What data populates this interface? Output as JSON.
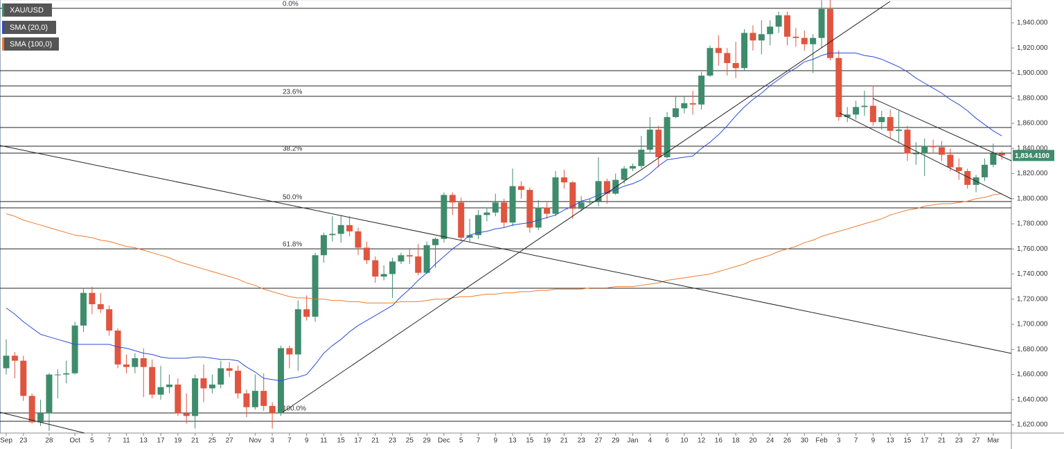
{
  "chart_data": {
    "type": "candlestick",
    "categories": [
      "Sep",
      null,
      "23",
      null,
      null,
      "28",
      null,
      null,
      "Oct",
      null,
      "5",
      null,
      "7",
      null,
      "11",
      null,
      "13",
      null,
      "17",
      null,
      "19",
      null,
      "21",
      null,
      "25",
      null,
      "27",
      null,
      null,
      "Nov",
      null,
      "3",
      null,
      "7",
      null,
      "9",
      null,
      "11",
      null,
      "15",
      null,
      "17",
      null,
      "21",
      null,
      "23",
      null,
      "25",
      null,
      "29",
      null,
      "Dec",
      null,
      "5",
      null,
      "7",
      null,
      "9",
      null,
      "13",
      null,
      "15",
      null,
      "19",
      null,
      "21",
      null,
      "23",
      null,
      "27",
      null,
      "29",
      null,
      "Jan",
      null,
      "4",
      null,
      "6",
      null,
      "10",
      null,
      "12",
      null,
      "16",
      null,
      "18",
      null,
      "20",
      null,
      "24",
      null,
      "26",
      null,
      "30",
      null,
      "Feb",
      null,
      "3",
      null,
      "7",
      null,
      "9",
      null,
      "13",
      null,
      "15",
      null,
      "17",
      null,
      "21",
      null,
      "23",
      null,
      "27",
      null,
      "Mar",
      null
    ],
    "series": [
      {
        "name": "XAU/USD",
        "color_up": "#3f8c6c",
        "color_down": "#e0553f",
        "ohlc": [
          [
            1665,
            1688,
            1660,
            1675
          ],
          [
            1675,
            1678,
            1657,
            1671
          ],
          [
            1671,
            1675,
            1639,
            1643
          ],
          [
            1643,
            1645,
            1621,
            1622
          ],
          [
            1622,
            1640,
            1619,
            1629
          ],
          [
            1629,
            1661,
            1615,
            1660
          ],
          [
            1660,
            1664,
            1641,
            1660
          ],
          [
            1660,
            1671,
            1653,
            1661
          ],
          [
            1661,
            1702,
            1660,
            1699
          ],
          [
            1699,
            1729,
            1694,
            1725
          ],
          [
            1725,
            1730,
            1708,
            1716
          ],
          [
            1716,
            1725,
            1709,
            1712
          ],
          [
            1712,
            1715,
            1691,
            1695
          ],
          [
            1695,
            1697,
            1665,
            1668
          ],
          [
            1668,
            1676,
            1661,
            1666
          ],
          [
            1666,
            1677,
            1661,
            1673
          ],
          [
            1673,
            1681,
            1642,
            1666
          ],
          [
            1666,
            1672,
            1641,
            1644
          ],
          [
            1644,
            1667,
            1640,
            1650
          ],
          [
            1650,
            1660,
            1645,
            1652
          ],
          [
            1652,
            1657,
            1627,
            1629
          ],
          [
            1629,
            1645,
            1621,
            1627
          ],
          [
            1627,
            1660,
            1617,
            1657
          ],
          [
            1657,
            1668,
            1638,
            1649
          ],
          [
            1649,
            1660,
            1645,
            1652
          ],
          [
            1652,
            1671,
            1649,
            1665
          ],
          [
            1665,
            1670,
            1658,
            1663
          ],
          [
            1663,
            1667,
            1641,
            1645
          ],
          [
            1645,
            1648,
            1626,
            1634
          ],
          [
            1634,
            1660,
            1632,
            1647
          ],
          [
            1647,
            1661,
            1631,
            1635
          ],
          [
            1635,
            1638,
            1617,
            1629
          ],
          [
            1629,
            1683,
            1627,
            1681
          ],
          [
            1681,
            1683,
            1665,
            1676
          ],
          [
            1676,
            1719,
            1663,
            1712
          ],
          [
            1712,
            1723,
            1703,
            1706
          ],
          [
            1706,
            1757,
            1702,
            1755
          ],
          [
            1755,
            1773,
            1749,
            1771
          ],
          [
            1771,
            1786,
            1766,
            1772
          ],
          [
            1772,
            1787,
            1765,
            1779
          ],
          [
            1779,
            1786,
            1770,
            1774
          ],
          [
            1774,
            1777,
            1755,
            1761
          ],
          [
            1761,
            1766,
            1748,
            1751
          ],
          [
            1751,
            1754,
            1733,
            1738
          ],
          [
            1738,
            1747,
            1735,
            1740
          ],
          [
            1740,
            1753,
            1721,
            1750
          ],
          [
            1750,
            1757,
            1748,
            1755
          ],
          [
            1755,
            1760,
            1748,
            1754
          ],
          [
            1754,
            1764,
            1739,
            1741
          ],
          [
            1741,
            1766,
            1740,
            1763
          ],
          [
            1763,
            1769,
            1745,
            1768
          ],
          [
            1768,
            1805,
            1765,
            1803
          ],
          [
            1803,
            1805,
            1787,
            1797
          ],
          [
            1797,
            1801,
            1766,
            1769
          ],
          [
            1769,
            1784,
            1766,
            1771
          ],
          [
            1771,
            1791,
            1768,
            1787
          ],
          [
            1787,
            1793,
            1782,
            1789
          ],
          [
            1789,
            1804,
            1786,
            1797
          ],
          [
            1797,
            1800,
            1777,
            1781
          ],
          [
            1781,
            1824,
            1778,
            1810
          ],
          [
            1810,
            1814,
            1800,
            1807
          ],
          [
            1807,
            1809,
            1773,
            1777
          ],
          [
            1777,
            1799,
            1775,
            1793
          ],
          [
            1793,
            1797,
            1784,
            1788
          ],
          [
            1788,
            1822,
            1786,
            1817
          ],
          [
            1817,
            1823,
            1808,
            1813
          ],
          [
            1813,
            1814,
            1784,
            1792
          ],
          [
            1792,
            1802,
            1790,
            1797
          ],
          [
            1797,
            1800,
            1796,
            1798
          ],
          [
            1798,
            1833,
            1794,
            1814
          ],
          [
            1814,
            1816,
            1796,
            1804
          ],
          [
            1804,
            1820,
            1803,
            1815
          ],
          [
            1815,
            1826,
            1812,
            1824
          ],
          [
            1824,
            1828,
            1822,
            1826
          ],
          [
            1826,
            1850,
            1824,
            1839
          ],
          [
            1839,
            1865,
            1837,
            1855
          ],
          [
            1855,
            1858,
            1825,
            1833
          ],
          [
            1833,
            1869,
            1832,
            1865
          ],
          [
            1865,
            1882,
            1864,
            1872
          ],
          [
            1872,
            1882,
            1868,
            1876
          ],
          [
            1876,
            1886,
            1867,
            1875
          ],
          [
            1875,
            1901,
            1871,
            1898
          ],
          [
            1898,
            1922,
            1897,
            1920
          ],
          [
            1920,
            1930,
            1906,
            1916
          ],
          [
            1916,
            1920,
            1898,
            1908
          ],
          [
            1908,
            1925,
            1896,
            1904
          ],
          [
            1904,
            1935,
            1902,
            1932
          ],
          [
            1932,
            1938,
            1918,
            1926
          ],
          [
            1926,
            1942,
            1915,
            1931
          ],
          [
            1931,
            1942,
            1922,
            1937
          ],
          [
            1937,
            1949,
            1932,
            1946
          ],
          [
            1946,
            1949,
            1922,
            1929
          ],
          [
            1929,
            1936,
            1921,
            1928
          ],
          [
            1928,
            1934,
            1918,
            1923
          ],
          [
            1923,
            1931,
            1900,
            1928
          ],
          [
            1928,
            1958,
            1920,
            1951
          ],
          [
            1951,
            1959,
            1910,
            1912
          ],
          [
            1912,
            1918,
            1862,
            1865
          ],
          [
            1865,
            1873,
            1861,
            1867
          ],
          [
            1867,
            1878,
            1863,
            1873
          ],
          [
            1873,
            1886,
            1866,
            1874
          ],
          [
            1874,
            1890,
            1858,
            1861
          ],
          [
            1861,
            1870,
            1855,
            1865
          ],
          [
            1865,
            1871,
            1848,
            1854
          ],
          [
            1854,
            1870,
            1844,
            1855
          ],
          [
            1855,
            1858,
            1830,
            1836
          ],
          [
            1836,
            1845,
            1827,
            1836
          ],
          [
            1836,
            1848,
            1818,
            1842
          ],
          [
            1842,
            1847,
            1836,
            1841
          ],
          [
            1841,
            1846,
            1830,
            1835
          ],
          [
            1835,
            1840,
            1822,
            1825
          ],
          [
            1825,
            1832,
            1815,
            1822
          ],
          [
            1822,
            1824,
            1808,
            1811
          ],
          [
            1811,
            1819,
            1805,
            1817
          ],
          [
            1817,
            1832,
            1814,
            1827
          ],
          [
            1827,
            1844,
            1825,
            1836
          ],
          [
            1836,
            1838,
            1831,
            1834.41
          ]
        ]
      },
      {
        "name": "SMA (20,0)",
        "color": "#2b4bd8",
        "values": [
          1713,
          1708,
          1702,
          1697,
          1692,
          1690,
          1688,
          1686,
          1684,
          1684,
          1684,
          1684,
          1684,
          1682,
          1681,
          1679,
          1677,
          1676,
          1674,
          1673,
          1673,
          1673,
          1674,
          1674,
          1673,
          1672,
          1672,
          1671,
          1666,
          1662,
          1657,
          1656,
          1655,
          1657,
          1658,
          1660,
          1668,
          1677,
          1683,
          1688,
          1694,
          1699,
          1703,
          1707,
          1711,
          1715,
          1722,
          1728,
          1735,
          1741,
          1748,
          1754,
          1760,
          1765,
          1771,
          1773,
          1774,
          1776,
          1777,
          1779,
          1780,
          1781,
          1783,
          1785,
          1787,
          1791,
          1794,
          1798,
          1800,
          1803,
          1805,
          1807,
          1810,
          1812,
          1815,
          1820,
          1826,
          1831,
          1832,
          1833,
          1834,
          1840,
          1845,
          1851,
          1858,
          1866,
          1873,
          1879,
          1884,
          1890,
          1895,
          1900,
          1904,
          1909,
          1911,
          1914,
          1916,
          1916,
          1916,
          1916,
          1914,
          1913,
          1911,
          1908,
          1905,
          1901,
          1896,
          1892,
          1888,
          1884,
          1879,
          1875,
          1870,
          1864,
          1859,
          1854,
          1850
        ]
      },
      {
        "name": "SMA (100,0)",
        "color": "#ee7b2c",
        "values": [
          1788,
          1786,
          1783,
          1781,
          1779,
          1777,
          1775,
          1773,
          1771,
          1770,
          1769,
          1767,
          1766,
          1764,
          1762,
          1761,
          1759,
          1757,
          1755,
          1753,
          1750,
          1748,
          1746,
          1744,
          1742,
          1740,
          1738,
          1736,
          1733,
          1731,
          1728,
          1726,
          1724,
          1722,
          1721,
          1721,
          1720,
          1720,
          1719,
          1719,
          1718,
          1718,
          1717,
          1717,
          1717,
          1717,
          1718,
          1718,
          1718,
          1719,
          1720,
          1720,
          1721,
          1722,
          1722,
          1723,
          1724,
          1724,
          1725,
          1725,
          1726,
          1726,
          1727,
          1727,
          1728,
          1728,
          1728,
          1728,
          1729,
          1729,
          1729,
          1730,
          1730,
          1730,
          1731,
          1732,
          1733,
          1735,
          1736,
          1737,
          1738,
          1739,
          1740,
          1742,
          1744,
          1746,
          1748,
          1751,
          1753,
          1755,
          1758,
          1760,
          1762,
          1765,
          1767,
          1770,
          1772,
          1774,
          1776,
          1778,
          1780,
          1782,
          1784,
          1787,
          1789,
          1791,
          1792,
          1794,
          1795,
          1796,
          1796,
          1797,
          1798,
          1800,
          1801,
          1803,
          1804
        ]
      }
    ],
    "ylim": [
      1613.4,
      1958.2
    ],
    "yticks": [
      {
        "value": 1620,
        "label": "1,620.000"
      },
      {
        "value": 1640,
        "label": "1,640.000"
      },
      {
        "value": 1660,
        "label": "1,660.000"
      },
      {
        "value": 1680,
        "label": "1,680.000"
      },
      {
        "value": 1700,
        "label": "1,700.000"
      },
      {
        "value": 1720,
        "label": "1,720.000"
      },
      {
        "value": 1740,
        "label": "1,740.000"
      },
      {
        "value": 1760,
        "label": "1,760.000"
      },
      {
        "value": 1780,
        "label": "1,780.000"
      },
      {
        "value": 1800,
        "label": "1,800.000"
      },
      {
        "value": 1820,
        "label": "1,820.000"
      },
      {
        "value": 1840,
        "label": "1,840.000"
      },
      {
        "value": 1860,
        "label": "1,860.000"
      },
      {
        "value": 1880,
        "label": "1,880.000"
      },
      {
        "value": 1900,
        "label": "1,900.000"
      },
      {
        "value": 1920,
        "label": "1,920.000"
      },
      {
        "value": 1940,
        "label": "1,940.000"
      }
    ],
    "levels": [
      {
        "label": "0.0%",
        "value": 1951.6
      },
      {
        "label": "23.6%",
        "value": 1881.5
      },
      {
        "label": "38.2%",
        "value": 1836.3
      },
      {
        "label": "50.0%",
        "value": 1797.7
      },
      {
        "label": "61.8%",
        "value": 1760.1
      },
      {
        "label": "100.0%",
        "value": 1629.4
      }
    ],
    "lines": [
      1901.9,
      1889.8,
      1856.7,
      1841.8,
      1792.7,
      1728.7,
      1622.8
    ],
    "last_price": {
      "value": 1834.41,
      "label": "1,834.4100"
    },
    "grid": false
  }
}
